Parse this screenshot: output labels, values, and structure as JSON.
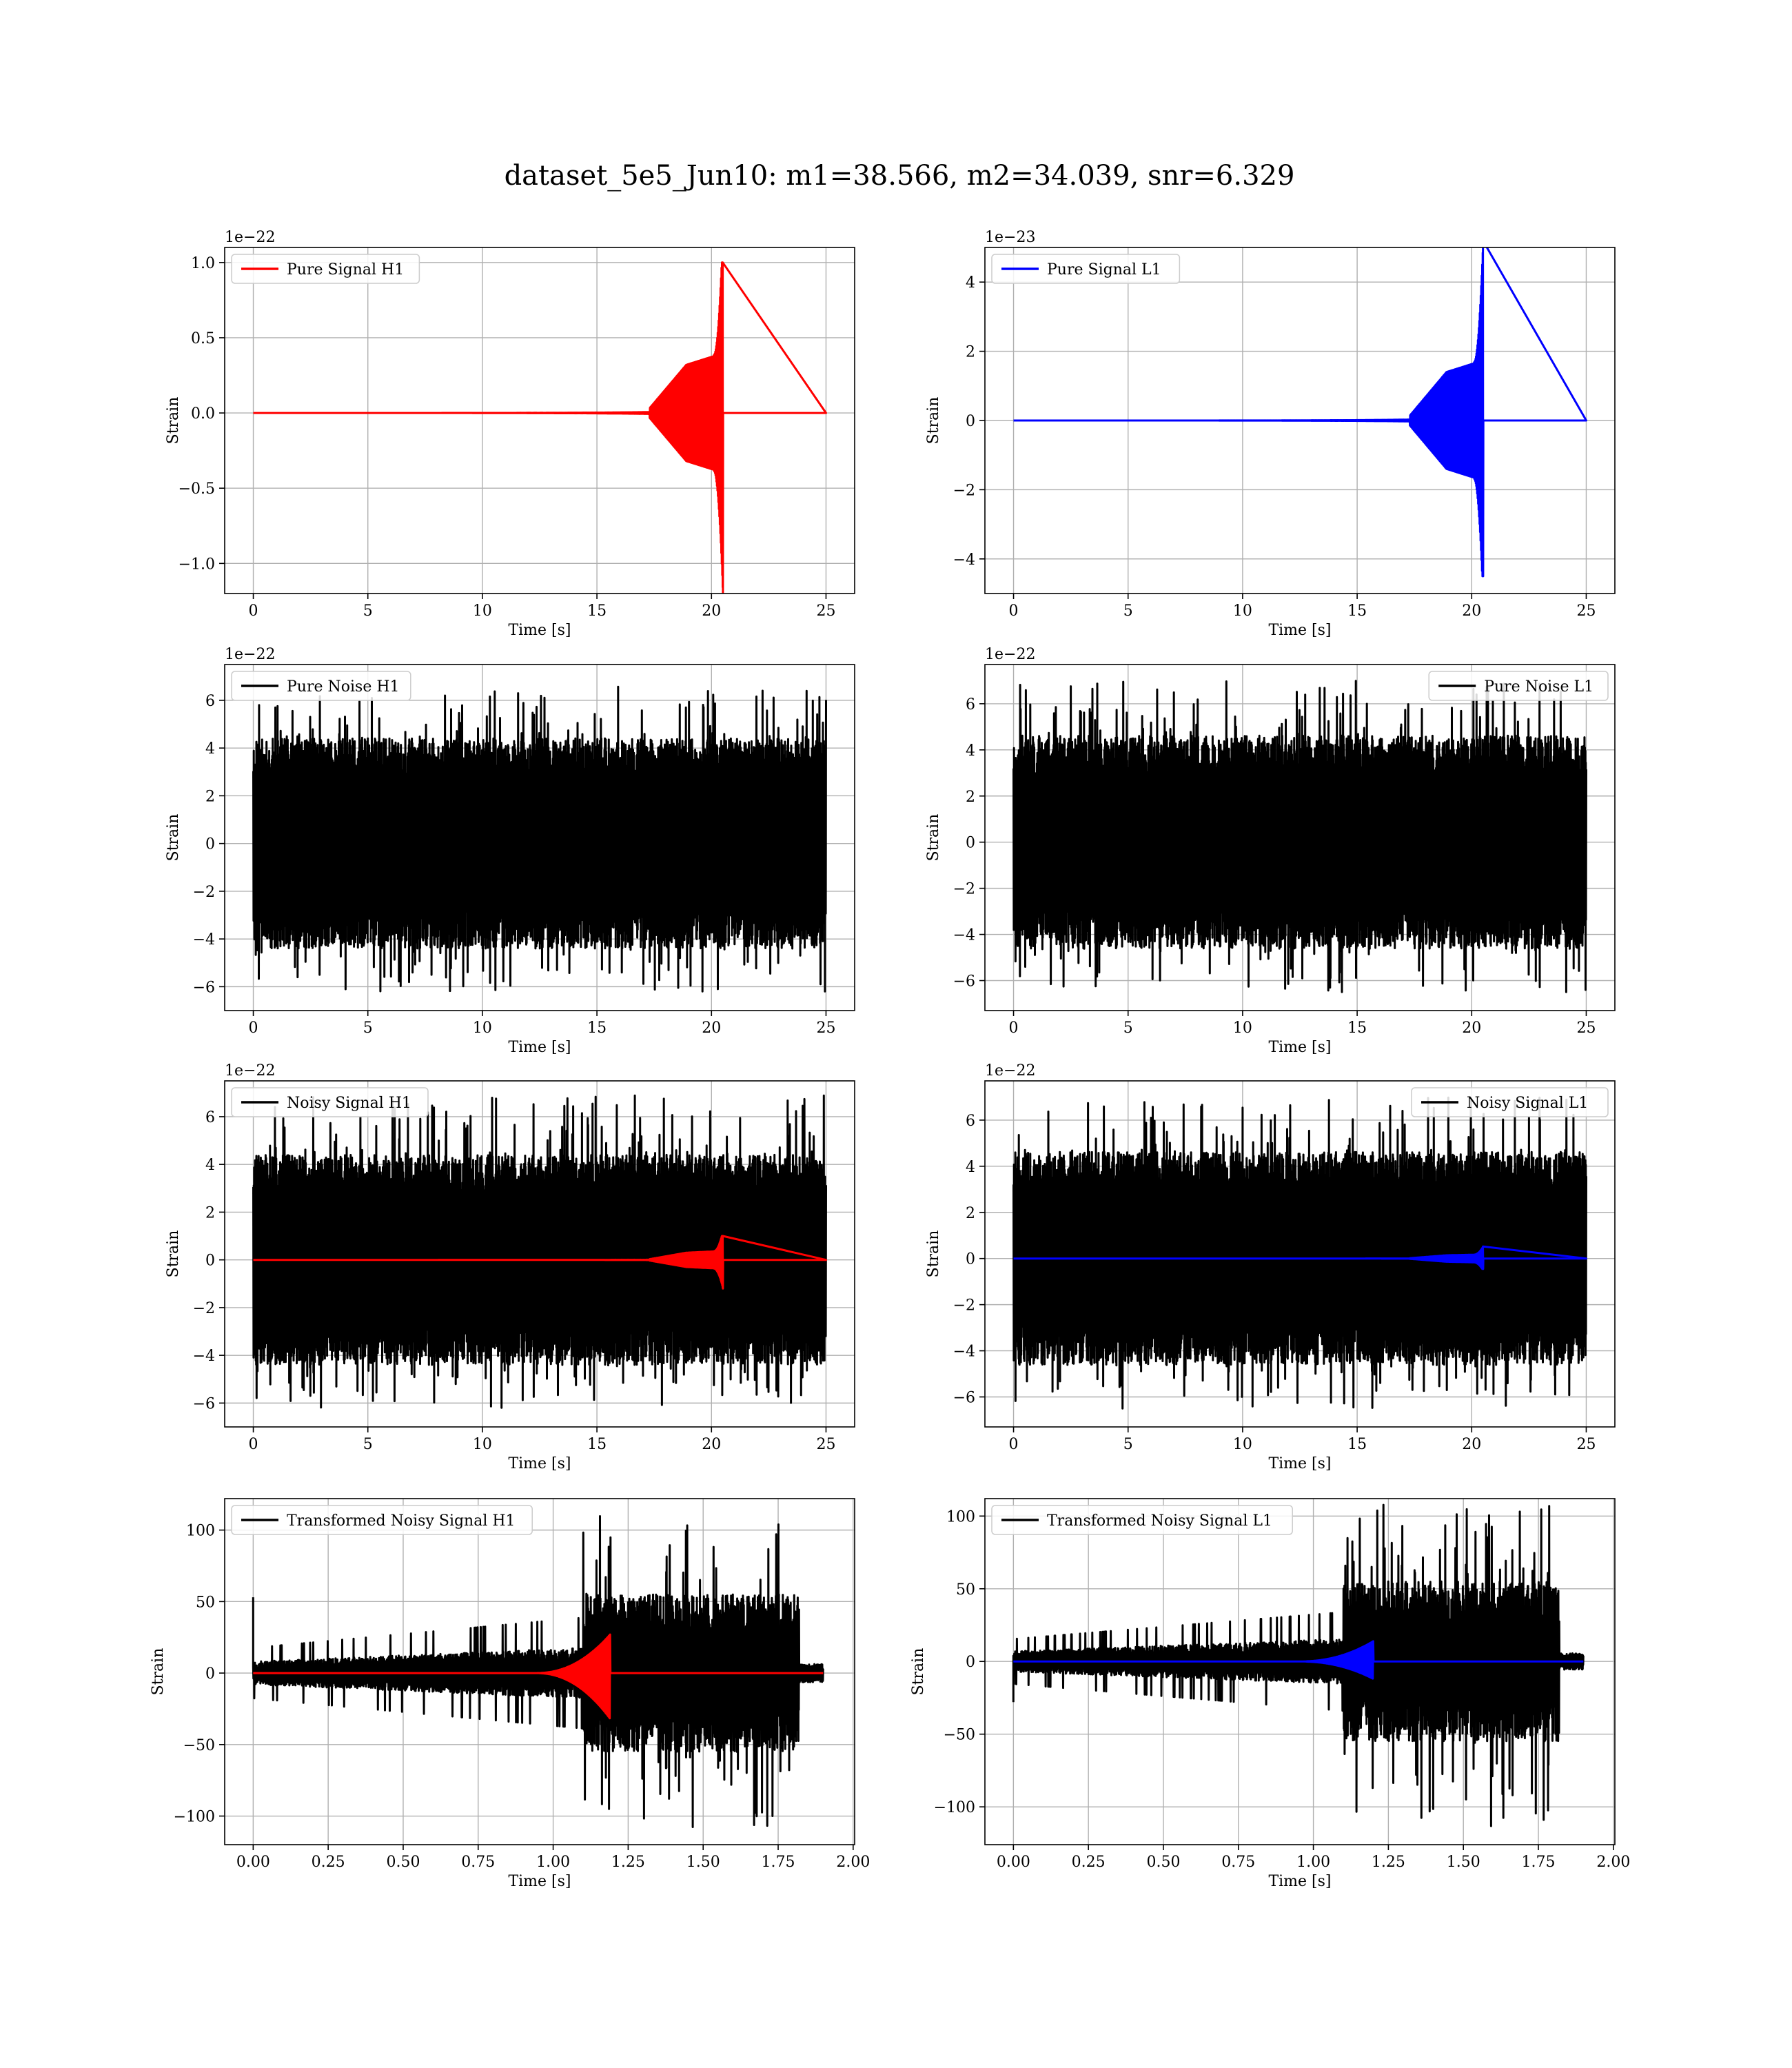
{
  "figure": {
    "title": "dataset_5e5_Jun10: m1=38.566, m2=34.039, snr=6.329"
  },
  "colors": {
    "h1_signal": "#ff0000",
    "l1_signal": "#0000ff",
    "noise": "#000000",
    "grid": "#b0b0b0"
  },
  "chart_data": [
    {
      "type": "line",
      "title": "",
      "legend_location": "upper left",
      "xlabel": "Time [s]",
      "ylabel": "Strain",
      "offset_text": "1e−22",
      "xlim": [
        -1.25,
        26.25
      ],
      "ylim": [
        -1.2,
        1.1
      ],
      "xticks": [
        0,
        5,
        10,
        15,
        20,
        25
      ],
      "xtick_labels": [
        "0",
        "5",
        "10",
        "15",
        "20",
        "25"
      ],
      "yticks": [
        -1.0,
        -0.5,
        0.0,
        0.5,
        1.0
      ],
      "ytick_labels": [
        "−1.0",
        "−0.5",
        "0.0",
        "0.5",
        "1.0"
      ],
      "series": [
        {
          "name": "Pure Signal H1",
          "color": "#ff0000",
          "kind": "chirp",
          "t_start": 0,
          "t_end": 25,
          "t_merge": 20.5,
          "bulk_amp": 0.32,
          "peak_pos": 1.0,
          "peak_neg": -1.2
        }
      ]
    },
    {
      "type": "line",
      "title": "",
      "legend_location": "upper left",
      "xlabel": "Time [s]",
      "ylabel": "Strain",
      "offset_text": "1e−23",
      "xlim": [
        -1.25,
        26.25
      ],
      "ylim": [
        -5.0,
        5.0
      ],
      "xticks": [
        0,
        5,
        10,
        15,
        20,
        25
      ],
      "xtick_labels": [
        "0",
        "5",
        "10",
        "15",
        "20",
        "25"
      ],
      "yticks": [
        -4,
        -2,
        0,
        2,
        4
      ],
      "ytick_labels": [
        "−4",
        "−2",
        "0",
        "2",
        "4"
      ],
      "series": [
        {
          "name": "Pure Signal L1",
          "color": "#0000ff",
          "kind": "chirp",
          "t_start": 0,
          "t_end": 25,
          "t_merge": 20.5,
          "bulk_amp": 1.4,
          "peak_pos": 5.2,
          "peak_neg": -4.5
        }
      ]
    },
    {
      "type": "line",
      "title": "",
      "legend_location": "upper left",
      "xlabel": "Time [s]",
      "ylabel": "Strain",
      "offset_text": "1e−22",
      "xlim": [
        -1.25,
        26.25
      ],
      "ylim": [
        -7.0,
        7.5
      ],
      "xticks": [
        0,
        5,
        10,
        15,
        20,
        25
      ],
      "xtick_labels": [
        "0",
        "5",
        "10",
        "15",
        "20",
        "25"
      ],
      "yticks": [
        -6,
        -4,
        -2,
        0,
        2,
        4,
        6
      ],
      "ytick_labels": [
        "−6",
        "−4",
        "−2",
        "0",
        "2",
        "4",
        "6"
      ],
      "series": [
        {
          "name": "Pure Noise H1",
          "color": "#000000",
          "kind": "noise",
          "t_start": 0,
          "t_end": 25,
          "band": 4.0,
          "max_pos": 6.6,
          "max_neg": -6.2,
          "seed": 11
        }
      ]
    },
    {
      "type": "line",
      "title": "",
      "legend_location": "upper right",
      "xlabel": "Time [s]",
      "ylabel": "Strain",
      "offset_text": "1e−22",
      "xlim": [
        -1.25,
        26.25
      ],
      "ylim": [
        -7.3,
        7.7
      ],
      "xticks": [
        0,
        5,
        10,
        15,
        20,
        25
      ],
      "xtick_labels": [
        "0",
        "5",
        "10",
        "15",
        "20",
        "25"
      ],
      "yticks": [
        -6,
        -4,
        -2,
        0,
        2,
        4,
        6
      ],
      "ytick_labels": [
        "−6",
        "−4",
        "−2",
        "0",
        "2",
        "4",
        "6"
      ],
      "series": [
        {
          "name": "Pure Noise L1",
          "color": "#000000",
          "kind": "noise",
          "t_start": 0,
          "t_end": 25,
          "band": 4.2,
          "max_pos": 7.0,
          "max_neg": -6.5,
          "seed": 23
        }
      ]
    },
    {
      "type": "line",
      "title": "",
      "legend_location": "upper left",
      "xlabel": "Time [s]",
      "ylabel": "Strain",
      "offset_text": "1e−22",
      "xlim": [
        -1.25,
        26.25
      ],
      "ylim": [
        -7.0,
        7.5
      ],
      "xticks": [
        0,
        5,
        10,
        15,
        20,
        25
      ],
      "xtick_labels": [
        "0",
        "5",
        "10",
        "15",
        "20",
        "25"
      ],
      "yticks": [
        -6,
        -4,
        -2,
        0,
        2,
        4,
        6
      ],
      "ytick_labels": [
        "−6",
        "−4",
        "−2",
        "0",
        "2",
        "4",
        "6"
      ],
      "series": [
        {
          "name": "Noisy Signal H1",
          "color": "#000000",
          "kind": "noise",
          "t_start": 0,
          "t_end": 25,
          "band": 4.0,
          "max_pos": 6.9,
          "max_neg": -6.2,
          "seed": 37
        },
        {
          "name": "",
          "color": "#ff0000",
          "kind": "chirp",
          "t_start": 0,
          "t_end": 25,
          "t_merge": 20.5,
          "bulk_amp": 0.3,
          "peak_pos": 1.0,
          "peak_neg": -1.2
        }
      ]
    },
    {
      "type": "line",
      "title": "",
      "legend_location": "upper right",
      "xlabel": "Time [s]",
      "ylabel": "Strain",
      "offset_text": "1e−22",
      "xlim": [
        -1.25,
        26.25
      ],
      "ylim": [
        -7.3,
        7.7
      ],
      "xticks": [
        0,
        5,
        10,
        15,
        20,
        25
      ],
      "xtick_labels": [
        "0",
        "5",
        "10",
        "15",
        "20",
        "25"
      ],
      "yticks": [
        -6,
        -4,
        -2,
        0,
        2,
        4,
        6
      ],
      "ytick_labels": [
        "−6",
        "−4",
        "−2",
        "0",
        "2",
        "4",
        "6"
      ],
      "series": [
        {
          "name": "Noisy Signal L1",
          "color": "#000000",
          "kind": "noise",
          "t_start": 0,
          "t_end": 25,
          "band": 4.2,
          "max_pos": 7.0,
          "max_neg": -6.5,
          "seed": 41
        },
        {
          "name": "",
          "color": "#0000ff",
          "kind": "chirp",
          "t_start": 0,
          "t_end": 25,
          "t_merge": 20.5,
          "bulk_amp": 0.14,
          "peak_pos": 0.52,
          "peak_neg": -0.45
        }
      ]
    },
    {
      "type": "line",
      "title": "",
      "legend_location": "upper left",
      "xlabel": "Time [s]",
      "ylabel": "Strain",
      "offset_text": "",
      "xlim": [
        -0.095,
        2.005
      ],
      "ylim": [
        -120,
        122
      ],
      "xticks": [
        0.0,
        0.25,
        0.5,
        0.75,
        1.0,
        1.25,
        1.5,
        1.75,
        2.0
      ],
      "xtick_labels": [
        "0.00",
        "0.25",
        "0.50",
        "0.75",
        "1.00",
        "1.25",
        "1.50",
        "1.75",
        "2.00"
      ],
      "yticks": [
        -100,
        -50,
        0,
        50,
        100
      ],
      "ytick_labels": [
        "−100",
        "−50",
        "0",
        "50",
        "100"
      ],
      "series": [
        {
          "name": "Transformed Noisy Signal H1",
          "color": "#000000",
          "kind": "whitened",
          "t_start": 0,
          "t_end": 1.9,
          "t_burst": 1.1,
          "pre_band": 8,
          "post_band": 55,
          "max_pos": 113,
          "max_neg": -110,
          "spike_t": 0.0,
          "spike_val": 53,
          "seed": 53
        },
        {
          "name": "",
          "color": "#ff0000",
          "kind": "whitened_chirp",
          "t_start": 0,
          "t_end": 1.9,
          "t_merge": 1.19,
          "peak_pos": 27,
          "peak_neg": -32
        }
      ]
    },
    {
      "type": "line",
      "title": "",
      "legend_location": "upper left",
      "xlabel": "Time [s]",
      "ylabel": "Strain",
      "offset_text": "",
      "xlim": [
        -0.095,
        2.005
      ],
      "ylim": [
        -126,
        112
      ],
      "xticks": [
        0.0,
        0.25,
        0.5,
        0.75,
        1.0,
        1.25,
        1.5,
        1.75,
        2.0
      ],
      "xtick_labels": [
        "0.00",
        "0.25",
        "0.50",
        "0.75",
        "1.00",
        "1.25",
        "1.50",
        "1.75",
        "2.00"
      ],
      "yticks": [
        -100,
        -50,
        0,
        50,
        100
      ],
      "ytick_labels": [
        "−100",
        "−50",
        "0",
        "50",
        "100"
      ],
      "series": [
        {
          "name": "Transformed Noisy Signal L1",
          "color": "#000000",
          "kind": "whitened",
          "t_start": 0,
          "t_end": 1.9,
          "t_burst": 1.1,
          "pre_band": 7,
          "post_band": 55,
          "max_pos": 108,
          "max_neg": -115,
          "spike_t": 0.0,
          "spike_val": -28,
          "seed": 67
        },
        {
          "name": "",
          "color": "#0000ff",
          "kind": "whitened_chirp",
          "t_start": 0,
          "t_end": 1.9,
          "t_merge": 1.2,
          "peak_pos": 14,
          "peak_neg": -12
        }
      ]
    }
  ]
}
